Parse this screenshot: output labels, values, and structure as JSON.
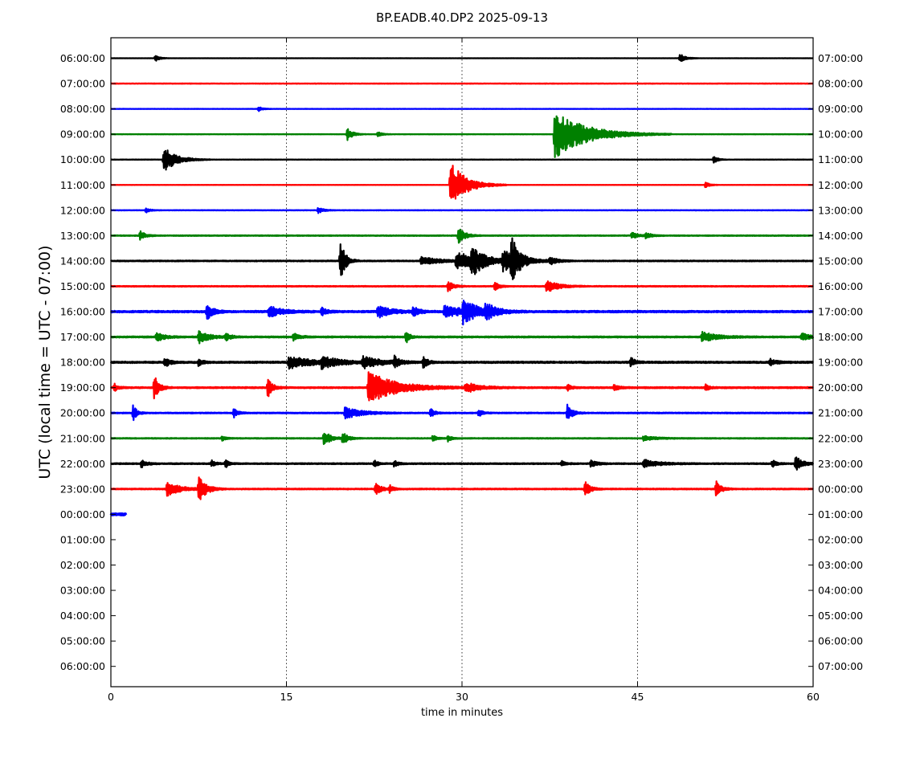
{
  "chart_data": {
    "type": "line",
    "title": "BP.EADB.40.DP2 2025-09-13",
    "xlabel": "time in minutes",
    "ylabel": "UTC (local time = UTC - 07:00)",
    "xlim": [
      0,
      60
    ],
    "xticks": [
      0,
      15,
      30,
      45,
      60
    ],
    "grid_x": [
      15,
      30,
      45
    ],
    "left_labels": [
      "06:00:00",
      "07:00:00",
      "08:00:00",
      "09:00:00",
      "10:00:00",
      "11:00:00",
      "12:00:00",
      "13:00:00",
      "14:00:00",
      "15:00:00",
      "16:00:00",
      "17:00:00",
      "18:00:00",
      "19:00:00",
      "20:00:00",
      "21:00:00",
      "22:00:00",
      "23:00:00",
      "00:00:00",
      "01:00:00",
      "02:00:00",
      "03:00:00",
      "04:00:00",
      "05:00:00",
      "06:00:00"
    ],
    "right_labels": [
      "07:00:00",
      "08:00:00",
      "09:00:00",
      "10:00:00",
      "11:00:00",
      "12:00:00",
      "13:00:00",
      "14:00:00",
      "15:00:00",
      "16:00:00",
      "17:00:00",
      "18:00:00",
      "19:00:00",
      "20:00:00",
      "21:00:00",
      "22:00:00",
      "23:00:00",
      "00:00:00",
      "01:00:00",
      "02:00:00",
      "03:00:00",
      "04:00:00",
      "05:00:00",
      "06:00:00",
      "07:00:00"
    ],
    "colors": [
      "#000000",
      "#ff0000",
      "#0000ff",
      "#008000"
    ],
    "traces": [
      {
        "row": 0,
        "color": "#000000",
        "x_end": 60,
        "noise": 0.2,
        "events": [
          {
            "t": 3.8,
            "amp": 4,
            "dur": 0.3
          },
          {
            "t": 48.6,
            "amp": 6,
            "dur": 0.4
          }
        ]
      },
      {
        "row": 1,
        "color": "#ff0000",
        "x_end": 60,
        "noise": 0.3,
        "events": []
      },
      {
        "row": 2,
        "color": "#0000ff",
        "x_end": 60,
        "noise": 0.2,
        "events": [
          {
            "t": 12.6,
            "amp": 3,
            "dur": 0.3
          }
        ]
      },
      {
        "row": 3,
        "color": "#008000",
        "x_end": 60,
        "noise": 0.25,
        "events": [
          {
            "t": 20.2,
            "amp": 8,
            "dur": 0.4
          },
          {
            "t": 22.8,
            "amp": 4,
            "dur": 0.3
          },
          {
            "t": 37.9,
            "amp": 30,
            "dur": 2.5
          }
        ]
      },
      {
        "row": 4,
        "color": "#000000",
        "x_end": 60,
        "noise": 0.2,
        "events": [
          {
            "t": 4.5,
            "amp": 16,
            "dur": 1.0
          },
          {
            "t": 51.5,
            "amp": 5,
            "dur": 0.3
          }
        ]
      },
      {
        "row": 5,
        "color": "#ff0000",
        "x_end": 60,
        "noise": 0.2,
        "events": [
          {
            "t": 29.0,
            "amp": 30,
            "dur": 1.2
          },
          {
            "t": 50.8,
            "amp": 4,
            "dur": 0.3
          }
        ]
      },
      {
        "row": 6,
        "color": "#0000ff",
        "x_end": 60,
        "noise": 0.3,
        "events": [
          {
            "t": 3.0,
            "amp": 3,
            "dur": 0.3
          },
          {
            "t": 17.7,
            "amp": 4,
            "dur": 0.4
          }
        ]
      },
      {
        "row": 7,
        "color": "#008000",
        "x_end": 60,
        "noise": 0.5,
        "events": [
          {
            "t": 2.5,
            "amp": 6,
            "dur": 0.4
          },
          {
            "t": 29.7,
            "amp": 10,
            "dur": 0.5
          },
          {
            "t": 44.5,
            "amp": 4,
            "dur": 0.5
          },
          {
            "t": 45.7,
            "amp": 4,
            "dur": 0.4
          }
        ]
      },
      {
        "row": 8,
        "color": "#000000",
        "x_end": 60,
        "noise": 0.6,
        "events": [
          {
            "t": 19.6,
            "amp": 26,
            "dur": 0.4
          },
          {
            "t": 26.5,
            "amp": 5,
            "dur": 1.5
          },
          {
            "t": 29.5,
            "amp": 10,
            "dur": 2.5
          },
          {
            "t": 30.8,
            "amp": 16,
            "dur": 0.8
          },
          {
            "t": 33.5,
            "amp": 12,
            "dur": 1.2
          },
          {
            "t": 34.2,
            "amp": 26,
            "dur": 0.6
          },
          {
            "t": 37.5,
            "amp": 5,
            "dur": 0.5
          }
        ]
      },
      {
        "row": 9,
        "color": "#ff0000",
        "x_end": 60,
        "noise": 0.5,
        "events": [
          {
            "t": 28.8,
            "amp": 7,
            "dur": 0.4
          },
          {
            "t": 32.8,
            "amp": 5,
            "dur": 0.4
          },
          {
            "t": 37.2,
            "amp": 8,
            "dur": 0.9
          }
        ]
      },
      {
        "row": 10,
        "color": "#0000ff",
        "x_end": 60,
        "noise": 1.1,
        "events": [
          {
            "t": 8.2,
            "amp": 10,
            "dur": 0.5
          },
          {
            "t": 13.5,
            "amp": 7,
            "dur": 1.0
          },
          {
            "t": 18.0,
            "amp": 5,
            "dur": 0.4
          },
          {
            "t": 22.8,
            "amp": 8,
            "dur": 1.0
          },
          {
            "t": 25.8,
            "amp": 6,
            "dur": 0.5
          },
          {
            "t": 28.5,
            "amp": 8,
            "dur": 1.5
          },
          {
            "t": 30.1,
            "amp": 16,
            "dur": 1.0
          },
          {
            "t": 32.0,
            "amp": 8,
            "dur": 1.0
          }
        ]
      },
      {
        "row": 11,
        "color": "#008000",
        "x_end": 60,
        "noise": 0.8,
        "events": [
          {
            "t": 3.9,
            "amp": 6,
            "dur": 0.6
          },
          {
            "t": 7.5,
            "amp": 8,
            "dur": 0.8
          },
          {
            "t": 9.8,
            "amp": 5,
            "dur": 0.4
          },
          {
            "t": 15.6,
            "amp": 5,
            "dur": 0.5
          },
          {
            "t": 25.2,
            "amp": 8,
            "dur": 0.3
          },
          {
            "t": 50.5,
            "amp": 6,
            "dur": 1.2
          },
          {
            "t": 59.0,
            "amp": 5,
            "dur": 0.6
          }
        ]
      },
      {
        "row": 12,
        "color": "#000000",
        "x_end": 60,
        "noise": 1.0,
        "events": [
          {
            "t": 4.6,
            "amp": 6,
            "dur": 0.4
          },
          {
            "t": 7.5,
            "amp": 5,
            "dur": 0.3
          },
          {
            "t": 15.2,
            "amp": 8,
            "dur": 1.8
          },
          {
            "t": 18.0,
            "amp": 6,
            "dur": 1.5
          },
          {
            "t": 21.5,
            "amp": 7,
            "dur": 1.5
          },
          {
            "t": 24.2,
            "amp": 7,
            "dur": 0.4
          },
          {
            "t": 26.7,
            "amp": 9,
            "dur": 0.3
          },
          {
            "t": 44.4,
            "amp": 7,
            "dur": 0.3
          },
          {
            "t": 56.3,
            "amp": 4,
            "dur": 0.5
          }
        ]
      },
      {
        "row": 13,
        "color": "#ff0000",
        "x_end": 60,
        "noise": 0.8,
        "events": [
          {
            "t": 0.3,
            "amp": 5,
            "dur": 0.3
          },
          {
            "t": 3.7,
            "amp": 16,
            "dur": 0.4
          },
          {
            "t": 13.4,
            "amp": 12,
            "dur": 0.4
          },
          {
            "t": 22.0,
            "amp": 20,
            "dur": 2.2
          },
          {
            "t": 30.3,
            "amp": 6,
            "dur": 1.2
          },
          {
            "t": 39.0,
            "amp": 4,
            "dur": 0.3
          },
          {
            "t": 43.0,
            "amp": 4,
            "dur": 0.4
          },
          {
            "t": 50.8,
            "amp": 4,
            "dur": 0.3
          }
        ]
      },
      {
        "row": 14,
        "color": "#0000ff",
        "x_end": 60,
        "noise": 0.6,
        "events": [
          {
            "t": 1.9,
            "amp": 10,
            "dur": 0.3
          },
          {
            "t": 10.5,
            "amp": 6,
            "dur": 0.3
          },
          {
            "t": 20.0,
            "amp": 8,
            "dur": 1.2
          },
          {
            "t": 27.3,
            "amp": 6,
            "dur": 0.3
          },
          {
            "t": 31.4,
            "amp": 5,
            "dur": 0.3
          },
          {
            "t": 39.0,
            "amp": 10,
            "dur": 0.4
          }
        ]
      },
      {
        "row": 15,
        "color": "#008000",
        "x_end": 60,
        "noise": 0.5,
        "events": [
          {
            "t": 9.5,
            "amp": 3,
            "dur": 0.3
          },
          {
            "t": 18.2,
            "amp": 10,
            "dur": 0.5
          },
          {
            "t": 19.8,
            "amp": 8,
            "dur": 0.4
          },
          {
            "t": 27.5,
            "amp": 4,
            "dur": 0.3
          },
          {
            "t": 28.8,
            "amp": 4,
            "dur": 0.3
          },
          {
            "t": 45.5,
            "amp": 3,
            "dur": 1.0
          }
        ]
      },
      {
        "row": 16,
        "color": "#000000",
        "x_end": 60,
        "noise": 0.7,
        "events": [
          {
            "t": 2.6,
            "amp": 5,
            "dur": 0.4
          },
          {
            "t": 8.6,
            "amp": 4,
            "dur": 0.3
          },
          {
            "t": 9.8,
            "amp": 5,
            "dur": 0.3
          },
          {
            "t": 22.5,
            "amp": 4,
            "dur": 0.3
          },
          {
            "t": 24.2,
            "amp": 4,
            "dur": 0.3
          },
          {
            "t": 38.5,
            "amp": 4,
            "dur": 0.3
          },
          {
            "t": 41.0,
            "amp": 4,
            "dur": 0.5
          },
          {
            "t": 45.5,
            "amp": 5,
            "dur": 1.2
          },
          {
            "t": 56.5,
            "amp": 5,
            "dur": 0.3
          },
          {
            "t": 58.5,
            "amp": 10,
            "dur": 0.5
          }
        ]
      },
      {
        "row": 17,
        "color": "#ff0000",
        "x_end": 60,
        "noise": 0.6,
        "events": [
          {
            "t": 4.8,
            "amp": 9,
            "dur": 1.0
          },
          {
            "t": 7.5,
            "amp": 16,
            "dur": 0.6
          },
          {
            "t": 22.6,
            "amp": 9,
            "dur": 0.4
          },
          {
            "t": 23.8,
            "amp": 5,
            "dur": 0.3
          },
          {
            "t": 40.5,
            "amp": 10,
            "dur": 0.4
          },
          {
            "t": 51.7,
            "amp": 10,
            "dur": 0.4
          }
        ]
      },
      {
        "row": 18,
        "color": "#0000ff",
        "x_end": 1.3,
        "noise": 1.0,
        "events": []
      }
    ]
  }
}
